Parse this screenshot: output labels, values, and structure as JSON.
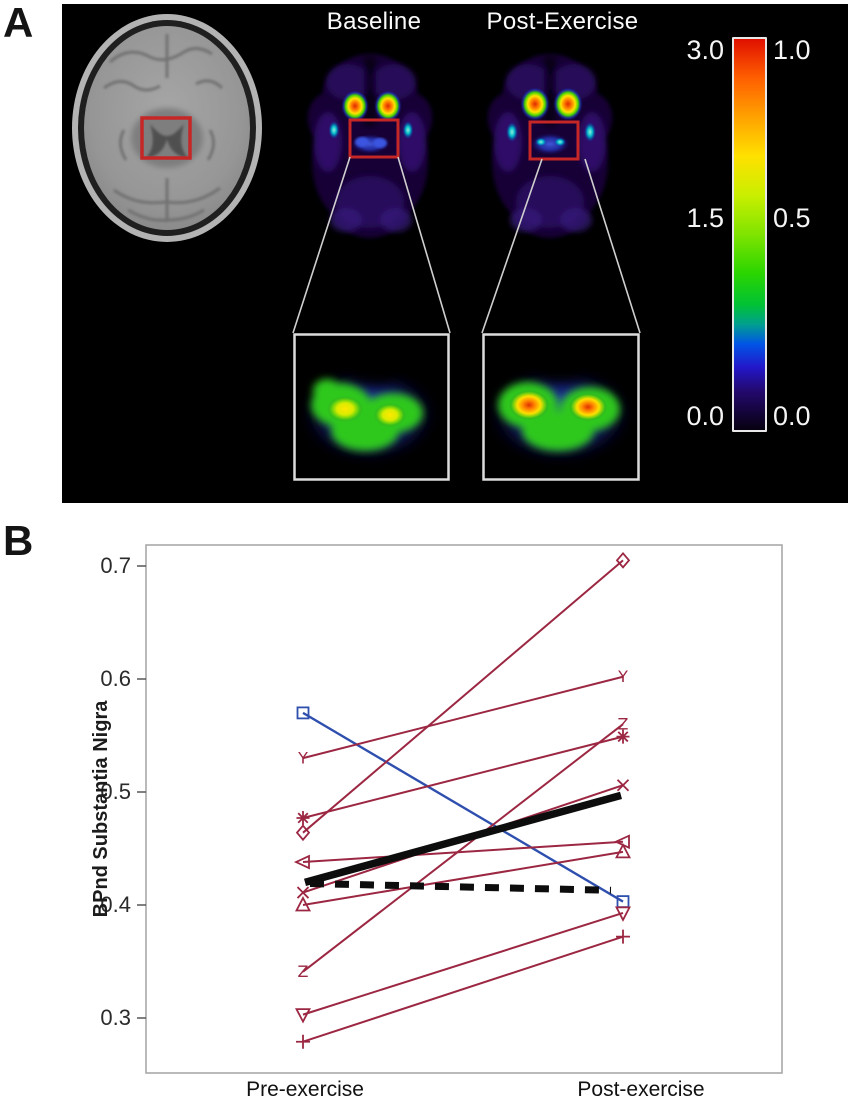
{
  "figure": {
    "panel_a_label": "A",
    "panel_b_label": "B"
  },
  "panel_a": {
    "baseline_title": "Baseline",
    "post_exercise_title": "Post-Exercise",
    "colorbar": {
      "left_scale_ticks": [
        "3.0",
        "1.5",
        "0.0"
      ],
      "right_scale_ticks": [
        "1.0",
        "0.5",
        "0.0"
      ]
    }
  },
  "chart_data": {
    "type": "line",
    "title": "",
    "xlabel": "",
    "ylabel": "BPnd Substantia Nigra",
    "categories": [
      "Pre-exercise",
      "Post-exercise"
    ],
    "y_ticks": [
      0.7,
      0.6,
      0.5,
      0.4,
      0.3
    ],
    "ylim": [
      0.25,
      0.72
    ],
    "grid": false,
    "legend": "none",
    "series": [
      {
        "name": "subject-blue-square",
        "marker": "square",
        "color": "#2e4fae",
        "width": 2.4,
        "values": [
          0.57,
          0.403
        ]
      },
      {
        "name": "subject-Y",
        "marker": "Y",
        "color": "#9c2742",
        "width": 2,
        "values": [
          0.53,
          0.602
        ]
      },
      {
        "name": "subject-asterisk",
        "marker": "asterisk",
        "color": "#9c2742",
        "width": 2,
        "values": [
          0.477,
          0.549
        ]
      },
      {
        "name": "subject-diamond",
        "marker": "diamond",
        "color": "#9c2742",
        "width": 2,
        "values": [
          0.464,
          0.705
        ]
      },
      {
        "name": "subject-triangle-left",
        "marker": "triangle-left",
        "color": "#9c2742",
        "width": 2,
        "values": [
          0.438,
          0.456
        ]
      },
      {
        "name": "subject-x",
        "marker": "x",
        "color": "#9c2742",
        "width": 2,
        "values": [
          0.411,
          0.506
        ]
      },
      {
        "name": "subject-triangle-up",
        "marker": "triangle-up",
        "color": "#9c2742",
        "width": 2,
        "values": [
          0.4,
          0.447
        ]
      },
      {
        "name": "subject-Z",
        "marker": "Z",
        "color": "#9c2742",
        "width": 2,
        "values": [
          0.341,
          0.56
        ]
      },
      {
        "name": "subject-triangle-down",
        "marker": "triangle-down",
        "color": "#9c2742",
        "width": 2,
        "values": [
          0.303,
          0.393
        ]
      },
      {
        "name": "subject-plus",
        "marker": "plus",
        "color": "#9c2742",
        "width": 2,
        "values": [
          0.279,
          0.372
        ]
      }
    ],
    "summary_lines": [
      {
        "name": "group-mean-solid",
        "style": "solid",
        "color": "#0d0d0d",
        "width": 7.5,
        "values": [
          0.42,
          0.497
        ]
      },
      {
        "name": "group-mean-dashed",
        "style": "dashed",
        "color": "#0d0d0d",
        "width": 7,
        "values": [
          0.419,
          0.413
        ]
      }
    ]
  }
}
